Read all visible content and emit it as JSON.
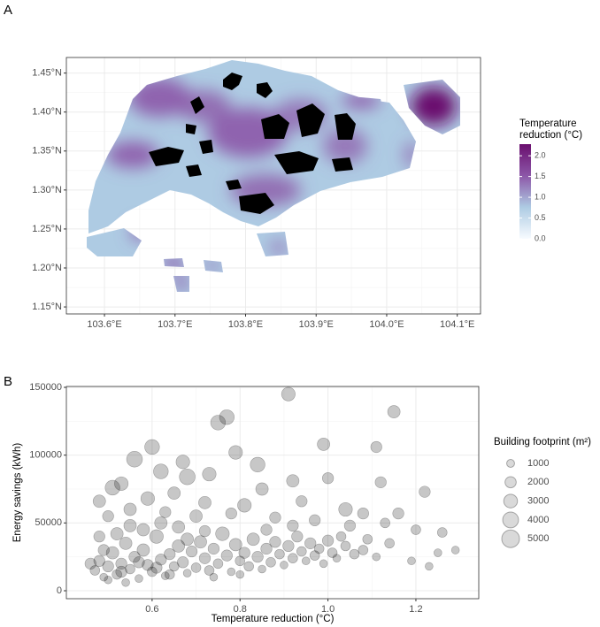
{
  "chart_data": [
    {
      "type": "map",
      "panel": "A",
      "xlim": [
        103.546,
        104.133
      ],
      "ylim": [
        1.141,
        1.47
      ],
      "xticks": [
        {
          "value": 103.6,
          "label": "103.6°E"
        },
        {
          "value": 103.7,
          "label": "103.7°E"
        },
        {
          "value": 103.8,
          "label": "103.8°E"
        },
        {
          "value": 103.9,
          "label": "103.9°E"
        },
        {
          "value": 104.0,
          "label": "104.0°E"
        },
        {
          "value": 104.1,
          "label": "104.1°E"
        }
      ],
      "yticks": [
        {
          "value": 1.15,
          "label": "1.15°N"
        },
        {
          "value": 1.2,
          "label": "1.20°N"
        },
        {
          "value": 1.25,
          "label": "1.25°N"
        },
        {
          "value": 1.3,
          "label": "1.30°N"
        },
        {
          "value": 1.35,
          "label": "1.35°N"
        },
        {
          "value": 1.4,
          "label": "1.40°N"
        },
        {
          "value": 1.45,
          "label": "1.45°N"
        }
      ],
      "grid": true,
      "colorbar_title": [
        "Temperature",
        "reduction (°C)"
      ],
      "colorbar_lim": [
        0,
        2.28
      ],
      "colorbar_ticks": [
        {
          "value": 0,
          "label": "0.0"
        },
        {
          "value": 0.5,
          "label": "0.5"
        },
        {
          "value": 1,
          "label": "1.0"
        },
        {
          "value": 1.5,
          "label": "1.5"
        },
        {
          "value": 2,
          "label": "2.0"
        }
      ],
      "colorbar_colors": [
        "#f7fbff",
        "#aecbe3",
        "#8c57a8",
        "#6a0f6e"
      ]
    },
    {
      "type": "scatter",
      "panel": "B",
      "x_label": "Temperature reduction (°C)",
      "y_label": "Energy savings (kWh)",
      "xlim": [
        0.405,
        1.343
      ],
      "ylim": [
        -5870,
        150650
      ],
      "xticks": [
        0.6,
        0.8,
        {
          "value": 1,
          "label": "1.0"
        },
        1.2
      ],
      "yticks": [
        0,
        50000,
        100000,
        150000
      ],
      "grid": true,
      "color": "#000000",
      "x": [
        0.91,
        1.15,
        0.77,
        0.75,
        0.6,
        0.56,
        0.67,
        0.84,
        0.99,
        1.11,
        0.62,
        0.73,
        0.68,
        0.53,
        0.79,
        0.51,
        0.92,
        1.0,
        0.85,
        1.12,
        1.04,
        1.08,
        1.22,
        1.16,
        0.65,
        0.59,
        0.48,
        0.72,
        0.81,
        0.94,
        0.5,
        0.55,
        0.63,
        0.7,
        0.78,
        0.88,
        0.97,
        1.05,
        1.13,
        1.2,
        1.26,
        1.29,
        1.25,
        1.19,
        1.23,
        1.14,
        1.08,
        1.03,
        0.47,
        0.48,
        0.49,
        0.5,
        0.51,
        0.52,
        0.53,
        0.54,
        0.55,
        0.56,
        0.57,
        0.58,
        0.59,
        0.6,
        0.61,
        0.62,
        0.63,
        0.64,
        0.65,
        0.66,
        0.67,
        0.68,
        0.69,
        0.7,
        0.71,
        0.72,
        0.73,
        0.74,
        0.75,
        0.76,
        0.77,
        0.78,
        0.79,
        0.8,
        0.81,
        0.82,
        0.83,
        0.84,
        0.85,
        0.86,
        0.87,
        0.88,
        0.89,
        0.9,
        0.91,
        0.92,
        0.93,
        0.94,
        0.95,
        0.96,
        0.97,
        0.98,
        0.99,
        1.0,
        1.01,
        1.02,
        1.04,
        1.06,
        1.09,
        1.11,
        0.46,
        0.5,
        0.54,
        0.58,
        0.62,
        0.66,
        0.72,
        0.52,
        0.57,
        0.61,
        0.53,
        0.49,
        0.64,
        0.68,
        0.74,
        0.8,
        0.86,
        0.92,
        0.48,
        0.55
      ],
      "values": [
        145000,
        132000,
        128000,
        124000,
        106000,
        97000,
        95000,
        93000,
        108000,
        106000,
        88000,
        86000,
        84000,
        79000,
        102000,
        76000,
        81000,
        83000,
        75000,
        80000,
        60000,
        57000,
        73000,
        57000,
        72000,
        68000,
        66000,
        65000,
        63000,
        66000,
        55000,
        60000,
        58000,
        55000,
        57000,
        54000,
        52000,
        48000,
        50000,
        45000,
        43000,
        30000,
        28000,
        22000,
        18000,
        35000,
        30000,
        40000,
        15000,
        22000,
        10000,
        18000,
        28000,
        12000,
        20000,
        35000,
        16000,
        25000,
        9000,
        30000,
        19000,
        14000,
        40000,
        23000,
        11000,
        27000,
        18000,
        33000,
        21000,
        13000,
        29000,
        17000,
        36000,
        24000,
        15000,
        31000,
        20000,
        42000,
        26000,
        14000,
        34000,
        22000,
        28000,
        18000,
        38000,
        25000,
        16000,
        31000,
        21000,
        36000,
        27000,
        19000,
        33000,
        24000,
        40000,
        29000,
        22000,
        35000,
        26000,
        31000,
        20000,
        37000,
        28000,
        24000,
        33000,
        27000,
        38000,
        25000,
        20000,
        8000,
        6000,
        45000,
        50000,
        47000,
        44000,
        42000,
        21000,
        17000,
        14000,
        30000,
        12000,
        38000,
        10000,
        12000,
        45000,
        48000,
        40000,
        48000
      ],
      "sizes": [
        3000,
        2500,
        3500,
        3500,
        3500,
        4000,
        3000,
        3500,
        2500,
        2000,
        3500,
        3000,
        4000,
        3000,
        3000,
        3500,
        2500,
        2000,
        2500,
        2000,
        3000,
        2000,
        2000,
        2000,
        2500,
        3000,
        2500,
        2500,
        3000,
        2000,
        2000,
        2500,
        2000,
        2500,
        2000,
        2000,
        2000,
        2000,
        1500,
        1500,
        1500,
        1000,
        1000,
        1000,
        1000,
        1500,
        1500,
        1500,
        1500,
        2000,
        1000,
        2000,
        2500,
        1500,
        2000,
        2500,
        1500,
        2000,
        1000,
        2500,
        2000,
        1500,
        3000,
        2000,
        1000,
        2000,
        1500,
        2500,
        2000,
        1000,
        2000,
        1500,
        2500,
        2000,
        1500,
        2000,
        1500,
        3000,
        2000,
        1000,
        2500,
        1500,
        2000,
        1500,
        2500,
        2000,
        1000,
        2000,
        1500,
        2000,
        1500,
        1000,
        2000,
        1500,
        2000,
        1500,
        1000,
        2000,
        1500,
        1500,
        1000,
        2000,
        1500,
        1000,
        1500,
        1500,
        1500,
        1000,
        2000,
        1000,
        1000,
        2500,
        2500,
        2500,
        2000,
        2500,
        2000,
        2000,
        2000,
        2000,
        1500,
        2500,
        1000,
        1000,
        2000,
        2000,
        2000,
        2500
      ],
      "size_legend": {
        "title": "Building footprint (m²)",
        "values": [
          1000,
          2000,
          3000,
          4000,
          5000
        ]
      }
    }
  ]
}
